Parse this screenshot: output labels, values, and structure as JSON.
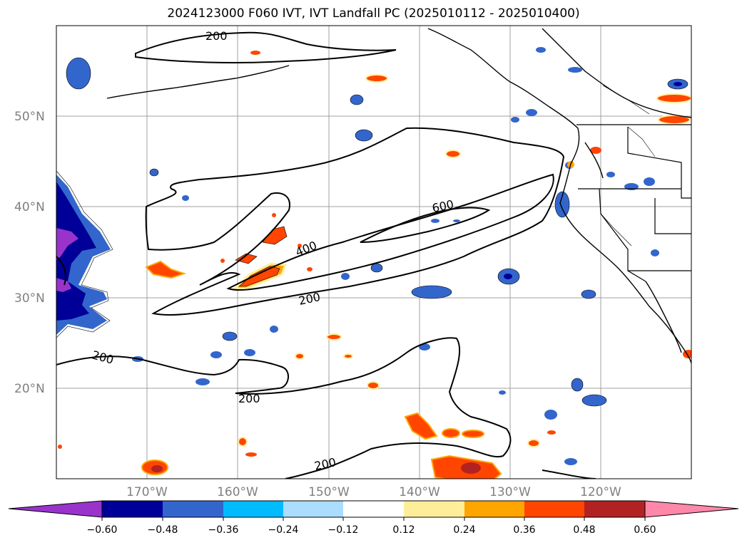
{
  "title": "2024123000 F060 IVT, IVT Landfall PC (2025010112 - 2025010400)",
  "map": {
    "lat_labels": [
      "50°N",
      "40°N",
      "30°N",
      "20°N"
    ],
    "lon_labels": [
      "170°W",
      "160°W",
      "150°W",
      "140°W",
      "130°W",
      "120°W"
    ],
    "contour_labels": [
      "200",
      "200",
      "200",
      "200",
      "200",
      "400",
      "600"
    ]
  },
  "colorbar": {
    "ticks": [
      "−0.60",
      "−0.48",
      "−0.36",
      "−0.24",
      "−0.12",
      "0.12",
      "0.24",
      "0.36",
      "0.48",
      "0.60"
    ],
    "colors": [
      "#9933cc",
      "#000099",
      "#3366cc",
      "#00bbff",
      "#aaddff",
      "#ffffff",
      "#ffee99",
      "#ffa500",
      "#ff4500",
      "#b22222",
      "#ff88aa"
    ]
  }
}
